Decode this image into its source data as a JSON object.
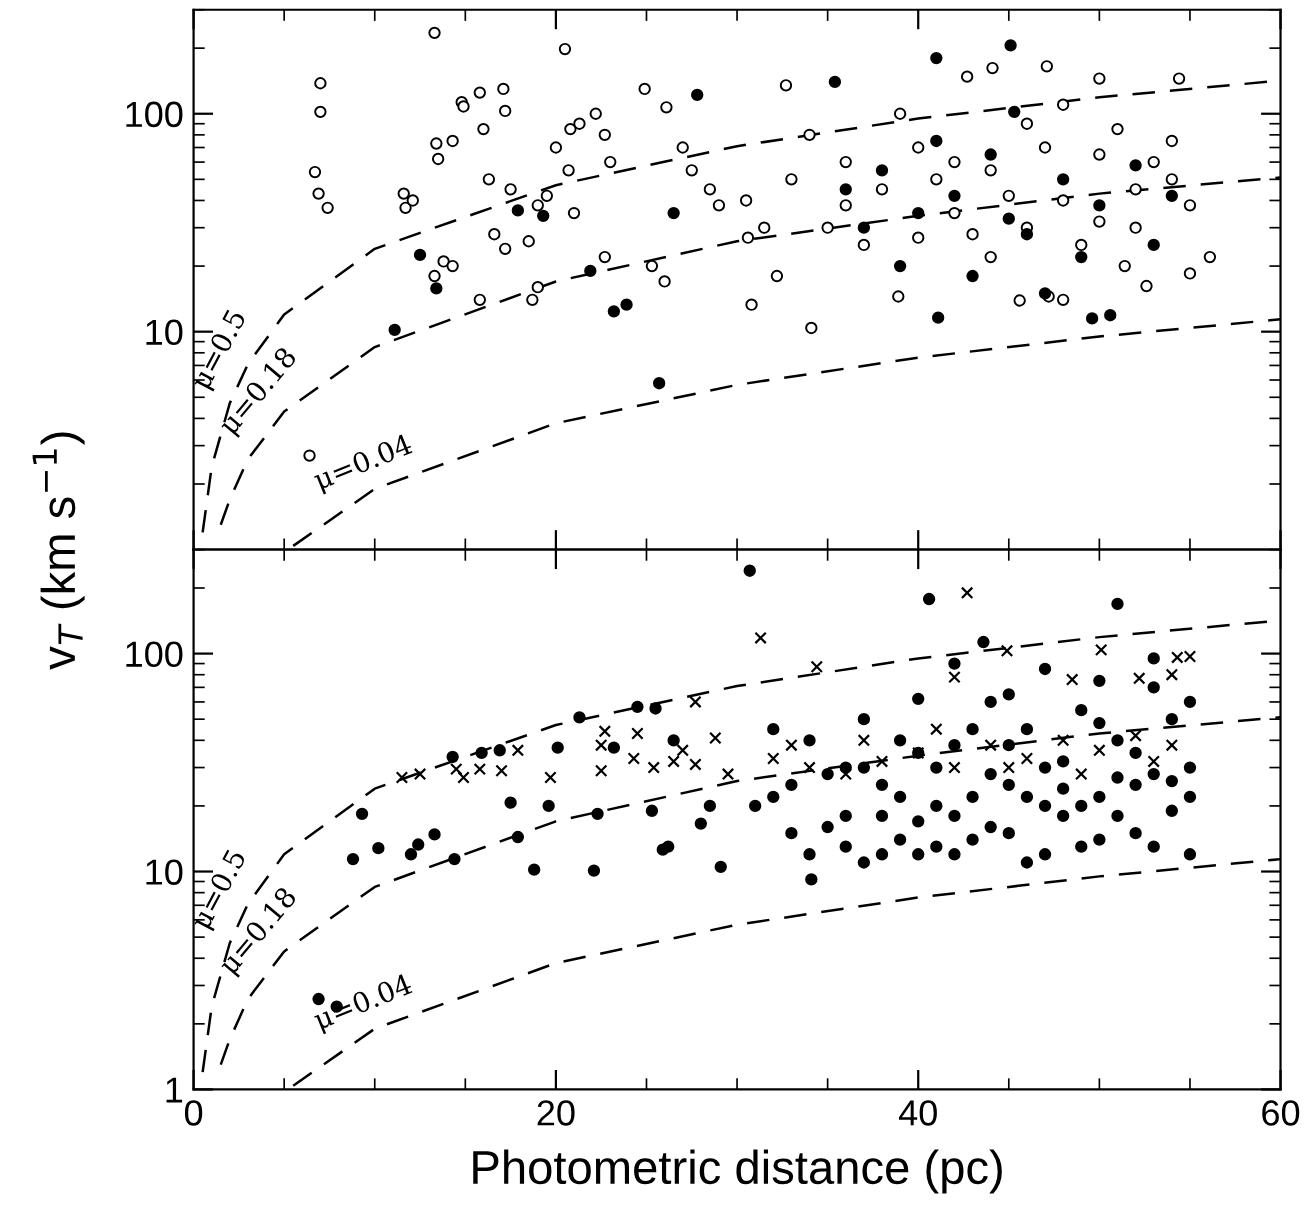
{
  "chart_data": [
    {
      "type": "scatter",
      "ylabel": "v$_{T}$ (km s$^{−1}$)",
      "log": "y",
      "xlim": [
        0,
        60
      ],
      "ylim": [
        1,
        300
      ],
      "xticks": [
        0,
        20,
        40,
        60
      ],
      "yticks": [
        10,
        100
      ],
      "tick_labels": "y",
      "grid": false,
      "legend": false,
      "annotations": [
        "μ=0.5",
        "μ=0.18",
        "μ=0.04"
      ],
      "series": [
        {
          "marker": "circle",
          "color": "#ffffff",
          "x": [
            6.7,
            6.9,
            7.0,
            7.0,
            7.4,
            6.4,
            13.3,
            11.6,
            11.7,
            12.1,
            13.4,
            13.5,
            14.3,
            14.8,
            14.9,
            15.8,
            16.0,
            17.1,
            17.2,
            17.5,
            16.3,
            13.8,
            13.3,
            14.3,
            15.8,
            16.6,
            17.2,
            18.5,
            19.0,
            19.5,
            20.0,
            20.8,
            21.3,
            22.2,
            22.7,
            24.9,
            26.1,
            27.0,
            27.5,
            28.5,
            29.0,
            30.5,
            31.5,
            32.2,
            30.6,
            26.0,
            25.3,
            22.7,
            21.0,
            19.0,
            18.7,
            20.7,
            23.0,
            20.5,
            32.7,
            42.7,
            44.1,
            47.1,
            50.0,
            54.4,
            56.1,
            55.0,
            34.1,
            30.8,
            38.9,
            47.2,
            48.0,
            52.6,
            51.4,
            45.6,
            34,
            36,
            38,
            40,
            42,
            44,
            46,
            48,
            50,
            52,
            54,
            35,
            37,
            39,
            41,
            43,
            45,
            47,
            49,
            51,
            53,
            55,
            33,
            36,
            40,
            44,
            48,
            52,
            54,
            50,
            46,
            42
          ],
          "values": [
            54,
            43,
            102,
            138,
            37,
            2.7,
            235,
            43,
            37,
            40,
            73,
            62,
            75,
            113,
            108,
            125,
            85,
            130,
            103,
            45,
            50,
            21,
            18,
            20,
            14,
            28,
            24,
            26,
            38,
            42,
            70,
            85,
            90,
            100,
            80,
            130,
            107,
            70,
            55,
            45,
            38,
            40,
            30,
            18,
            27,
            17,
            20,
            22,
            35,
            16,
            14,
            55,
            60,
            198,
            135,
            148,
            162,
            165,
            145,
            145,
            22,
            18.5,
            10.4,
            13.3,
            14.5,
            14.5,
            14,
            16.2,
            20,
            13.9,
            80,
            60,
            45,
            70,
            35,
            55,
            90,
            40,
            65,
            30,
            50,
            30,
            25,
            100,
            50,
            28,
            42,
            70,
            25,
            85,
            60,
            38,
            50,
            38,
            27,
            22,
            110,
            45,
            75,
            32,
            30,
            60
          ]
        },
        {
          "marker": "circle",
          "color": "#000000",
          "x": [
            12.5,
            13.4,
            11.1,
            25.7,
            17.9,
            19.3,
            23.2,
            23.9,
            27.8,
            26.5,
            21.9,
            41.0,
            45.1,
            35.4,
            50.6,
            49.6,
            41.1,
            45.3,
            36,
            38,
            40,
            42,
            44,
            46,
            48,
            50,
            52,
            54,
            37,
            41,
            45,
            49,
            53,
            43,
            47,
            39
          ],
          "values": [
            22.5,
            15.8,
            10.2,
            5.8,
            36,
            34,
            12.4,
            13.3,
            122,
            35,
            19,
            180,
            206,
            140,
            11.9,
            11.5,
            11.6,
            102,
            45,
            55,
            35,
            42,
            65,
            28,
            50,
            38,
            58,
            42,
            30,
            75,
            33,
            22,
            25,
            18,
            15,
            20
          ]
        },
        {
          "type": "line",
          "line_style": "dashed",
          "color": "#000000",
          "x": [
            0.5,
            1,
            2,
            3,
            5,
            10,
            20,
            30,
            40,
            50,
            60
          ],
          "values": [
            1.2,
            2.4,
            4.7,
            7.1,
            12,
            24,
            47,
            71,
            95,
            119,
            142
          ]
        },
        {
          "type": "line",
          "line_style": "dashed",
          "color": "#000000",
          "x": [
            1.5,
            2,
            3,
            5,
            10,
            20,
            30,
            40,
            50,
            60
          ],
          "values": [
            1.3,
            1.7,
            2.6,
            4.3,
            8.5,
            17,
            26,
            34,
            43,
            51
          ]
        },
        {
          "type": "line",
          "line_style": "dashed",
          "color": "#000000",
          "x": [
            5.5,
            10,
            20,
            30,
            40,
            50,
            60
          ],
          "values": [
            1.04,
            1.9,
            3.8,
            5.7,
            7.6,
            9.5,
            11.4
          ]
        }
      ]
    },
    {
      "type": "scatter",
      "xlabel": "Photometric distance (pc)",
      "log": "y",
      "xlim": [
        0,
        60
      ],
      "ylim": [
        1,
        300
      ],
      "xticks": [
        0,
        20,
        40,
        60
      ],
      "yticks": [
        1,
        10,
        100
      ],
      "grid": false,
      "legend": false,
      "annotations": [
        "μ=0.5",
        "μ=0.18",
        "μ=0.04"
      ],
      "series": [
        {
          "marker": "circle",
          "color": "#000000",
          "x": [
            6.9,
            7.9,
            8.8,
            9.3,
            10.2,
            12.0,
            12.4,
            13.3,
            14.4,
            14.3,
            15.9,
            16.9,
            17.5,
            17.9,
            18.8,
            19.6,
            20.1,
            21.3,
            22.1,
            22.3,
            23.2,
            24.5,
            25.5,
            25.3,
            25.9,
            26.2,
            26.5,
            28.0,
            28.5,
            29.1,
            30.7,
            40.6,
            51.0,
            34.1,
            43.6,
            32,
            33,
            34,
            35,
            36,
            37,
            38,
            39,
            40,
            41,
            42,
            43,
            44,
            45,
            46,
            47,
            48,
            49,
            50,
            51,
            52,
            53,
            54,
            55,
            55,
            54,
            53,
            52,
            51,
            50,
            49,
            48,
            47,
            46,
            45,
            44,
            43,
            42,
            41,
            40,
            39,
            38,
            37,
            36,
            35,
            34,
            33,
            32,
            31,
            55,
            55,
            54,
            53,
            52,
            51,
            50,
            49,
            48,
            47,
            46,
            45,
            44,
            43,
            42,
            41,
            40,
            39,
            38,
            37,
            36,
            50,
            47,
            45,
            42,
            53,
            40
          ],
          "values": [
            2.6,
            2.4,
            11.4,
            18.4,
            12.8,
            12,
            13.3,
            14.8,
            11.4,
            33.6,
            35,
            36,
            20.7,
            14.4,
            10.2,
            20,
            37,
            51,
            10.1,
            18.4,
            37,
            57,
            56,
            19,
            12.6,
            13,
            40,
            16.6,
            20,
            10.5,
            240,
            178,
            169,
            9.2,
            113,
            22,
            15,
            12,
            28,
            18,
            11,
            25,
            14,
            35,
            20,
            12,
            45,
            16,
            25,
            11,
            30,
            18,
            13,
            22,
            40,
            15,
            28,
            19,
            12,
            60,
            50,
            70,
            25,
            18,
            14,
            55,
            32,
            20,
            45,
            15,
            60,
            22,
            38,
            13,
            17,
            40,
            12,
            50,
            30,
            16,
            40,
            25,
            45,
            20,
            30,
            22,
            26,
            13,
            35,
            27,
            48,
            20,
            24,
            12,
            22,
            38,
            28,
            14,
            18,
            30,
            12,
            22,
            18,
            30,
            13,
            75,
            85,
            65,
            90,
            95,
            62
          ]
        },
        {
          "marker": "cross",
          "color": "#000000",
          "x": [
            11.5,
            12.5,
            14.5,
            14.9,
            15.8,
            17.0,
            17.9,
            19.7,
            22.7,
            22.5,
            22.5,
            24.5,
            24.3,
            25.4,
            26.5,
            27.0,
            27.7,
            27.7,
            28.8,
            29.5,
            31.3,
            42.7,
            34.4,
            44.9,
            50.1,
            54.3,
            55.0,
            42.0,
            48.5,
            52.2,
            54.0,
            32,
            34,
            36,
            38,
            40,
            42,
            44,
            46,
            48,
            50,
            52,
            54,
            33,
            37,
            41,
            45,
            49,
            53
          ],
          "values": [
            27,
            28,
            29.5,
            27,
            29.5,
            29,
            36,
            27,
            44,
            38,
            29,
            43,
            33,
            30,
            32,
            36,
            60,
            31,
            41,
            28,
            118,
            190,
            87,
            103,
            104,
            96,
            97,
            78,
            76,
            77,
            80,
            33,
            30,
            28,
            32,
            35,
            30,
            38,
            33,
            40,
            36,
            42,
            38,
            38,
            40,
            45,
            30,
            28,
            32
          ]
        },
        {
          "type": "line",
          "line_style": "dashed",
          "color": "#000000",
          "x": [
            0.5,
            1,
            2,
            3,
            5,
            10,
            20,
            30,
            40,
            50,
            60
          ],
          "values": [
            1.2,
            2.4,
            4.7,
            7.1,
            12,
            24,
            47,
            71,
            95,
            119,
            142
          ]
        },
        {
          "type": "line",
          "line_style": "dashed",
          "color": "#000000",
          "x": [
            1.5,
            2,
            3,
            5,
            10,
            20,
            30,
            40,
            50,
            60
          ],
          "values": [
            1.3,
            1.7,
            2.6,
            4.3,
            8.5,
            17,
            26,
            34,
            43,
            51
          ]
        },
        {
          "type": "line",
          "line_style": "dashed",
          "color": "#000000",
          "x": [
            5.5,
            10,
            20,
            30,
            40,
            50,
            60
          ],
          "values": [
            1.04,
            1.9,
            3.8,
            5.7,
            7.6,
            9.5,
            11.4
          ]
        }
      ]
    }
  ]
}
